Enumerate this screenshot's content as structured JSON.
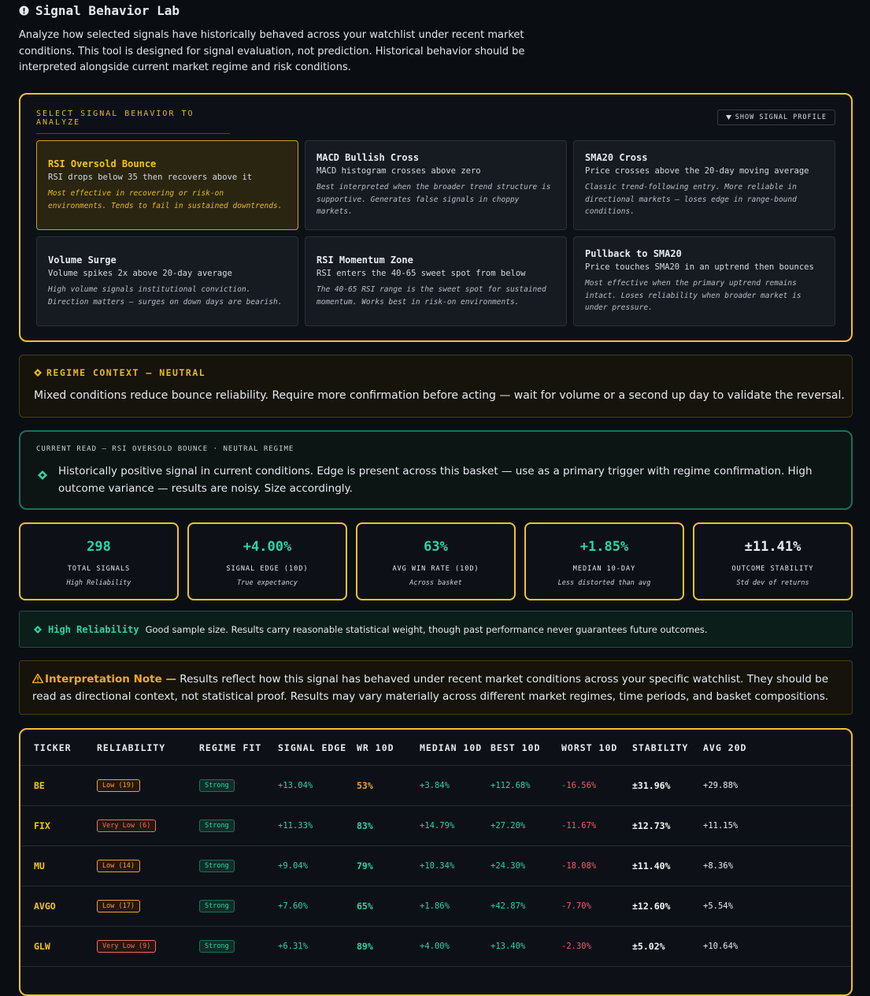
{
  "header": {
    "title": "Signal Behavior Lab",
    "description": "Analyze how selected signals have historically behaved across your watchlist under recent market conditions. This tool is designed for signal evaluation, not prediction. Historical behavior should be interpreted alongside current market regime and risk conditions."
  },
  "selector": {
    "heading": "SELECT SIGNAL BEHAVIOR TO ANALYZE",
    "profile_button": "SHOW SIGNAL PROFILE",
    "selected": 0,
    "cards": [
      {
        "name": "RSI Oversold Bounce",
        "summary": "RSI drops below 35 then recovers above it",
        "note": "Most effective in recovering or risk-on environments. Tends to fail in sustained downtrends."
      },
      {
        "name": "MACD Bullish Cross",
        "summary": "MACD histogram crosses above zero",
        "note": "Best interpreted when the broader trend structure is supportive. Generates false signals in choppy markets."
      },
      {
        "name": "SMA20 Cross",
        "summary": "Price crosses above the 20-day moving average",
        "note": "Classic trend-following entry. More reliable in directional markets — loses edge in range-bound conditions."
      },
      {
        "name": "Volume Surge",
        "summary": "Volume spikes 2x above 20-day average",
        "note": "High volume signals institutional conviction. Direction matters — surges on down days are bearish."
      },
      {
        "name": "RSI Momentum Zone",
        "summary": "RSI enters the 40-65 sweet spot from below",
        "note": "The 40-65 RSI range is the sweet spot for sustained momentum. Works best in risk-on environments."
      },
      {
        "name": "Pullback to SMA20",
        "summary": "Price touches SMA20 in an uptrend then bounces",
        "note": "Most effective when the primary uptrend remains intact. Loses reliability when broader market is under pressure."
      }
    ]
  },
  "regime": {
    "title": "REGIME CONTEXT — NEUTRAL",
    "text": "Mixed conditions reduce bounce reliability. Require more confirmation before acting — wait for volume or a second up day to validate the reversal."
  },
  "current_read": {
    "heading": "CURRENT READ — RSI OVERSOLD BOUNCE · NEUTRAL REGIME",
    "text": "Historically positive signal in current conditions. Edge is present across this basket — use as a primary trigger with regime confirmation. High outcome variance — results are noisy. Size accordingly."
  },
  "stats": [
    {
      "value": "298",
      "label": "TOTAL SIGNALS",
      "sub": "High Reliability",
      "color": "#2dd4a7"
    },
    {
      "value": "+4.00%",
      "label": "SIGNAL EDGE (10D)",
      "sub": "True expectancy",
      "color": "#2dd4a7"
    },
    {
      "value": "63%",
      "label": "AVG WIN RATE (10D)",
      "sub": "Across basket",
      "color": "#2dd4a7"
    },
    {
      "value": "+1.85%",
      "label": "MEDIAN 10-DAY",
      "sub": "Less distorted than avg",
      "color": "#2dd4a7"
    },
    {
      "value": "±11.41%",
      "label": "OUTCOME STABILITY",
      "sub": "Std dev of returns",
      "color": "#e6e9ee"
    }
  ],
  "reliability": {
    "label": "High Reliability",
    "text": "Good sample size. Results carry reasonable statistical weight, though past performance never guarantees future outcomes."
  },
  "note": {
    "label": "Interpretation Note —",
    "text": "Results reflect how this signal has behaved under recent market conditions across your specific watchlist. They should be read as directional context, not statistical proof. Results may vary materially across different market regimes, time periods, and basket compositions."
  },
  "table": {
    "columns": [
      "TICKER",
      "RELIABILITY",
      "REGIME FIT",
      "SIGNAL EDGE",
      "WR 10D",
      "MEDIAN 10D",
      "BEST 10D",
      "WORST 10D",
      "STABILITY",
      "AVG 20D"
    ],
    "rows": [
      {
        "ticker": "BE",
        "reliability": "Low (19)",
        "reliability_color": "#e8a33d",
        "regime_fit": "Strong",
        "signal_edge": "+13.04%",
        "wr_10d": "53%",
        "wr_color": "#f0a43a",
        "median_10d": "+3.84%",
        "best_10d": "+112.68%",
        "worst_10d": "-16.56%",
        "stability": "±31.96%",
        "avg_20d": "+29.88%"
      },
      {
        "ticker": "FIX",
        "reliability": "Very Low (6)",
        "reliability_color": "#ef6b6b",
        "regime_fit": "Strong",
        "signal_edge": "+11.33%",
        "wr_10d": "83%",
        "wr_color": "#2dd4a7",
        "median_10d": "+14.79%",
        "best_10d": "+27.20%",
        "worst_10d": "-11.67%",
        "stability": "±12.73%",
        "avg_20d": "+11.15%"
      },
      {
        "ticker": "MU",
        "reliability": "Low (14)",
        "reliability_color": "#e8a33d",
        "regime_fit": "Strong",
        "signal_edge": "+9.04%",
        "wr_10d": "79%",
        "wr_color": "#2dd4a7",
        "median_10d": "+10.34%",
        "best_10d": "+24.30%",
        "worst_10d": "-18.08%",
        "stability": "±11.40%",
        "avg_20d": "+8.36%"
      },
      {
        "ticker": "AVGO",
        "reliability": "Low (17)",
        "reliability_color": "#e8a33d",
        "regime_fit": "Strong",
        "signal_edge": "+7.60%",
        "wr_10d": "65%",
        "wr_color": "#2dd4a7",
        "median_10d": "+1.86%",
        "best_10d": "+42.87%",
        "worst_10d": "-7.70%",
        "stability": "±12.60%",
        "avg_20d": "+5.54%"
      },
      {
        "ticker": "GLW",
        "reliability": "Very Low (9)",
        "reliability_color": "#ef6b6b",
        "regime_fit": "Strong",
        "signal_edge": "+6.31%",
        "wr_10d": "89%",
        "wr_color": "#2dd4a7",
        "median_10d": "+4.00%",
        "best_10d": "+13.40%",
        "worst_10d": "-2.30%",
        "stability": "±5.02%",
        "avg_20d": "+10.64%"
      }
    ]
  }
}
